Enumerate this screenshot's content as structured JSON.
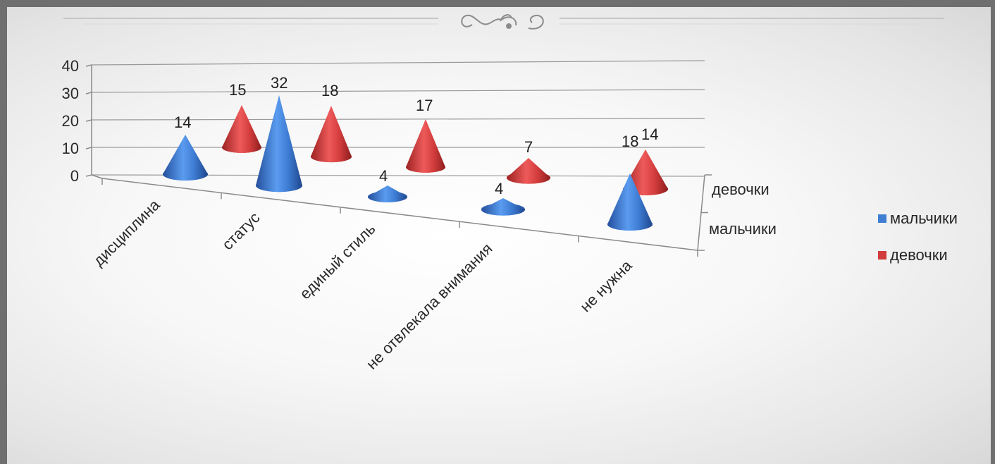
{
  "chart_data": {
    "type": "bar",
    "bar_shape": "cone",
    "perspective": "3d",
    "categories": [
      "дисциплина",
      "статус",
      "единый стиль",
      "не отвлекала внимания",
      "не нужна"
    ],
    "series": [
      {
        "name": "мальчики",
        "values": [
          14,
          32,
          4,
          4,
          18
        ],
        "color": "#3f7fd3"
      },
      {
        "name": "девочки",
        "values": [
          15,
          18,
          17,
          7,
          14
        ],
        "color": "#d23c3c"
      }
    ],
    "y_ticks": [
      "0",
      "10",
      "20",
      "30",
      "40"
    ],
    "ylim": [
      0,
      40
    ],
    "depth_labels": [
      "девочки",
      "мальчики"
    ],
    "legend_position": "right",
    "grid": true
  },
  "legend": {
    "items": [
      {
        "label": "мальчики",
        "color": "#3f7fd3"
      },
      {
        "label": "девочки",
        "color": "#d23c3c"
      }
    ]
  },
  "decoration": {
    "header_ornament": "flourish-ornament"
  }
}
